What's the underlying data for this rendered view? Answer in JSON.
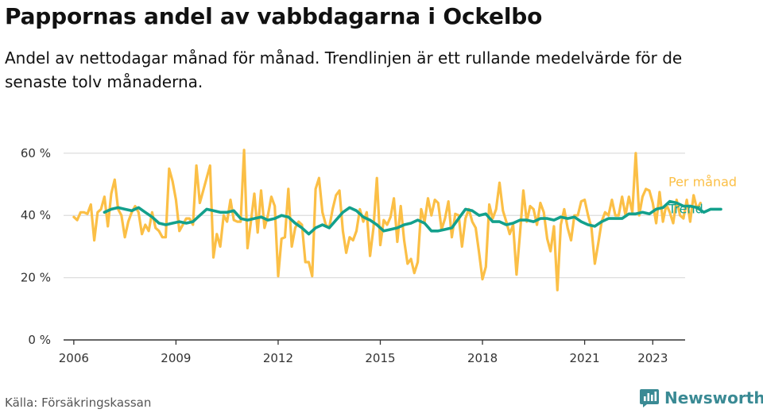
{
  "title": "Pappornas andel av vabbdagarna i Ockelbo",
  "subtitle": "Andel av nettodagar månad för månad. Trendlinjen är ett rullande medelvärde för de senaste tolv månaderna.",
  "source": "Källa: Försäkringskassan",
  "brand": {
    "name": "Newsworthy",
    "icon": "newsworthy-logo-icon",
    "color": "#3a8a94"
  },
  "colors": {
    "monthly": "#fbbf46",
    "trend": "#13a08c",
    "grid": "#dddddd",
    "axis": "#333333"
  },
  "chart_data": {
    "type": "line",
    "title": "Pappornas andel av vabbdagarna i Ockelbo",
    "ylim": [
      0,
      62
    ],
    "xlim": [
      2005.7,
      2023.95
    ],
    "y_ticks": [
      0,
      20,
      40,
      60
    ],
    "y_tick_labels": [
      "0 %",
      "20 %",
      "40 %",
      "60 %"
    ],
    "x_ticks": [
      2006,
      2009,
      2012,
      2015,
      2018,
      2021,
      2023
    ],
    "x_tick_labels": [
      "2006",
      "2009",
      "2012",
      "2015",
      "2018",
      "2021",
      "2023"
    ],
    "grid": "horizontal",
    "legend": "end-of-line labels, right",
    "series": [
      {
        "name": "Per månad",
        "color": "#fbbf46",
        "points": [
          [
            2006.0,
            39.5
          ],
          [
            2006.1,
            38.5
          ],
          [
            2006.2,
            41
          ],
          [
            2006.3,
            41
          ],
          [
            2006.4,
            40.5
          ],
          [
            2006.5,
            43.5
          ],
          [
            2006.6,
            32
          ],
          [
            2006.7,
            41
          ],
          [
            2006.8,
            42
          ],
          [
            2006.9,
            46
          ],
          [
            2007.0,
            36.5
          ],
          [
            2007.1,
            47
          ],
          [
            2007.2,
            51.5
          ],
          [
            2007.3,
            42
          ],
          [
            2007.4,
            40
          ],
          [
            2007.5,
            33
          ],
          [
            2007.6,
            38
          ],
          [
            2007.7,
            41
          ],
          [
            2007.8,
            43
          ],
          [
            2007.9,
            41
          ],
          [
            2008.0,
            34
          ],
          [
            2008.1,
            37
          ],
          [
            2008.2,
            35
          ],
          [
            2008.3,
            41
          ],
          [
            2008.4,
            36
          ],
          [
            2008.5,
            35
          ],
          [
            2008.6,
            33
          ],
          [
            2008.7,
            33
          ],
          [
            2008.8,
            55
          ],
          [
            2008.9,
            51
          ],
          [
            2009.0,
            45
          ],
          [
            2009.1,
            35
          ],
          [
            2009.2,
            37
          ],
          [
            2009.3,
            39
          ],
          [
            2009.4,
            39
          ],
          [
            2009.5,
            37
          ],
          [
            2009.6,
            56
          ],
          [
            2009.7,
            44
          ],
          [
            2009.8,
            48
          ],
          [
            2009.9,
            52
          ],
          [
            2010.0,
            56
          ],
          [
            2010.1,
            26.5
          ],
          [
            2010.2,
            34
          ],
          [
            2010.3,
            30
          ],
          [
            2010.4,
            40
          ],
          [
            2010.5,
            38
          ],
          [
            2010.6,
            45
          ],
          [
            2010.7,
            38.5
          ],
          [
            2010.8,
            38
          ],
          [
            2010.9,
            38
          ],
          [
            2011.0,
            61
          ],
          [
            2011.1,
            29.5
          ],
          [
            2011.2,
            38
          ],
          [
            2011.3,
            47
          ],
          [
            2011.4,
            34.5
          ],
          [
            2011.5,
            48
          ],
          [
            2011.6,
            36
          ],
          [
            2011.7,
            40
          ],
          [
            2011.8,
            46
          ],
          [
            2011.9,
            43
          ],
          [
            2012.0,
            20.5
          ],
          [
            2012.1,
            32.5
          ],
          [
            2012.2,
            33
          ],
          [
            2012.3,
            48.5
          ],
          [
            2012.4,
            30
          ],
          [
            2012.5,
            36
          ],
          [
            2012.6,
            38
          ],
          [
            2012.7,
            37
          ],
          [
            2012.8,
            25
          ],
          [
            2012.9,
            25
          ],
          [
            2013.0,
            20.5
          ],
          [
            2013.1,
            48.5
          ],
          [
            2013.2,
            52
          ],
          [
            2013.3,
            41
          ],
          [
            2013.4,
            37
          ],
          [
            2013.5,
            36
          ],
          [
            2013.6,
            42
          ],
          [
            2013.7,
            46.5
          ],
          [
            2013.8,
            48
          ],
          [
            2013.9,
            35
          ],
          [
            2014.0,
            28
          ],
          [
            2014.1,
            33
          ],
          [
            2014.2,
            32
          ],
          [
            2014.3,
            35
          ],
          [
            2014.4,
            42
          ],
          [
            2014.5,
            38
          ],
          [
            2014.6,
            41
          ],
          [
            2014.7,
            27
          ],
          [
            2014.8,
            36
          ],
          [
            2014.9,
            52
          ],
          [
            2015.0,
            30.5
          ],
          [
            2015.1,
            38.5
          ],
          [
            2015.2,
            37
          ],
          [
            2015.3,
            39.5
          ],
          [
            2015.4,
            45.5
          ],
          [
            2015.5,
            31.5
          ],
          [
            2015.6,
            43
          ],
          [
            2015.7,
            32
          ],
          [
            2015.8,
            24.5
          ],
          [
            2015.9,
            26
          ],
          [
            2016.0,
            21.5
          ],
          [
            2016.1,
            25
          ],
          [
            2016.2,
            42
          ],
          [
            2016.3,
            38
          ],
          [
            2016.4,
            45.5
          ],
          [
            2016.5,
            40
          ],
          [
            2016.6,
            45
          ],
          [
            2016.7,
            44
          ],
          [
            2016.8,
            35.5
          ],
          [
            2016.9,
            39
          ],
          [
            2017.0,
            44.5
          ],
          [
            2017.1,
            33
          ],
          [
            2017.2,
            40.5
          ],
          [
            2017.3,
            40
          ],
          [
            2017.4,
            30
          ],
          [
            2017.5,
            39
          ],
          [
            2017.6,
            42
          ],
          [
            2017.7,
            38
          ],
          [
            2017.8,
            36
          ],
          [
            2017.9,
            28
          ],
          [
            2018.0,
            19.5
          ],
          [
            2018.1,
            23.5
          ],
          [
            2018.2,
            43.5
          ],
          [
            2018.3,
            39
          ],
          [
            2018.4,
            42
          ],
          [
            2018.5,
            50.5
          ],
          [
            2018.6,
            41.5
          ],
          [
            2018.7,
            38
          ],
          [
            2018.8,
            34
          ],
          [
            2018.9,
            37
          ],
          [
            2019.0,
            21
          ],
          [
            2019.1,
            34
          ],
          [
            2019.2,
            48
          ],
          [
            2019.3,
            38
          ],
          [
            2019.4,
            43
          ],
          [
            2019.5,
            42
          ],
          [
            2019.6,
            37
          ],
          [
            2019.7,
            44
          ],
          [
            2019.8,
            41
          ],
          [
            2019.9,
            32.5
          ],
          [
            2020.0,
            28.5
          ],
          [
            2020.1,
            36.5
          ],
          [
            2020.2,
            16
          ],
          [
            2020.3,
            37
          ],
          [
            2020.4,
            42
          ],
          [
            2020.5,
            36
          ],
          [
            2020.6,
            32
          ],
          [
            2020.7,
            40
          ],
          [
            2020.8,
            40
          ],
          [
            2020.9,
            44.5
          ],
          [
            2021.0,
            45
          ],
          [
            2021.1,
            40
          ],
          [
            2021.2,
            36
          ],
          [
            2021.3,
            24.5
          ],
          [
            2021.4,
            31
          ],
          [
            2021.5,
            38
          ],
          [
            2021.6,
            41
          ],
          [
            2021.7,
            40
          ],
          [
            2021.8,
            45
          ],
          [
            2021.9,
            40
          ],
          [
            2022.0,
            40
          ],
          [
            2022.1,
            46
          ],
          [
            2022.2,
            40
          ],
          [
            2022.3,
            46
          ],
          [
            2022.4,
            41
          ],
          [
            2022.5,
            60
          ],
          [
            2022.6,
            40
          ],
          [
            2022.7,
            46
          ],
          [
            2022.8,
            48.5
          ],
          [
            2022.9,
            48
          ],
          [
            2023.0,
            44
          ],
          [
            2023.1,
            37.5
          ],
          [
            2023.2,
            47.5
          ],
          [
            2023.3,
            38
          ],
          [
            2023.4,
            43.5
          ],
          [
            2023.5,
            41
          ],
          [
            2023.6,
            37.5
          ],
          [
            2023.7,
            45
          ],
          [
            2023.8,
            40
          ],
          [
            2023.9,
            39
          ],
          [
            2024.0,
            45
          ],
          [
            2024.1,
            38
          ],
          [
            2024.2,
            46.5
          ],
          [
            2024.3,
            42
          ],
          [
            2024.4,
            44
          ]
        ]
      },
      {
        "name": "Trend",
        "color": "#13a08c",
        "points": [
          [
            2006.9,
            41
          ],
          [
            2007.1,
            42
          ],
          [
            2007.3,
            42.5
          ],
          [
            2007.5,
            42
          ],
          [
            2007.7,
            41.5
          ],
          [
            2007.9,
            42.5
          ],
          [
            2008.1,
            41
          ],
          [
            2008.3,
            39.5
          ],
          [
            2008.5,
            37.5
          ],
          [
            2008.7,
            37
          ],
          [
            2008.9,
            37.5
          ],
          [
            2009.1,
            38
          ],
          [
            2009.3,
            37.5
          ],
          [
            2009.5,
            38
          ],
          [
            2009.7,
            40
          ],
          [
            2009.9,
            42
          ],
          [
            2010.1,
            41.5
          ],
          [
            2010.3,
            41
          ],
          [
            2010.5,
            41
          ],
          [
            2010.7,
            41.5
          ],
          [
            2010.9,
            39
          ],
          [
            2011.1,
            38.5
          ],
          [
            2011.3,
            39
          ],
          [
            2011.5,
            39.5
          ],
          [
            2011.7,
            38.5
          ],
          [
            2011.9,
            39
          ],
          [
            2012.1,
            40
          ],
          [
            2012.3,
            39.5
          ],
          [
            2012.5,
            37.5
          ],
          [
            2012.7,
            36
          ],
          [
            2012.9,
            34
          ],
          [
            2013.1,
            36
          ],
          [
            2013.3,
            37
          ],
          [
            2013.5,
            36
          ],
          [
            2013.7,
            38.5
          ],
          [
            2013.9,
            41
          ],
          [
            2014.1,
            42.5
          ],
          [
            2014.3,
            41.5
          ],
          [
            2014.5,
            39.5
          ],
          [
            2014.7,
            38.5
          ],
          [
            2014.9,
            37
          ],
          [
            2015.1,
            35
          ],
          [
            2015.3,
            35.5
          ],
          [
            2015.5,
            36
          ],
          [
            2015.7,
            37
          ],
          [
            2015.9,
            37.5
          ],
          [
            2016.1,
            38.5
          ],
          [
            2016.3,
            37.5
          ],
          [
            2016.5,
            35
          ],
          [
            2016.7,
            35
          ],
          [
            2016.9,
            35.5
          ],
          [
            2017.1,
            36
          ],
          [
            2017.3,
            39
          ],
          [
            2017.5,
            42
          ],
          [
            2017.7,
            41.5
          ],
          [
            2017.9,
            40
          ],
          [
            2018.1,
            40.5
          ],
          [
            2018.3,
            38
          ],
          [
            2018.5,
            38
          ],
          [
            2018.7,
            37
          ],
          [
            2018.9,
            37.5
          ],
          [
            2019.1,
            38.5
          ],
          [
            2019.3,
            38.5
          ],
          [
            2019.5,
            38
          ],
          [
            2019.7,
            39
          ],
          [
            2019.9,
            39
          ],
          [
            2020.1,
            38.5
          ],
          [
            2020.3,
            39.5
          ],
          [
            2020.5,
            39
          ],
          [
            2020.7,
            39.5
          ],
          [
            2020.9,
            38
          ],
          [
            2021.1,
            37
          ],
          [
            2021.3,
            36.5
          ],
          [
            2021.5,
            38
          ],
          [
            2021.7,
            39
          ],
          [
            2021.9,
            39
          ],
          [
            2022.1,
            39
          ],
          [
            2022.3,
            40.5
          ],
          [
            2022.5,
            40.5
          ],
          [
            2022.7,
            41
          ],
          [
            2022.9,
            40.5
          ],
          [
            2023.1,
            42
          ],
          [
            2023.3,
            42.5
          ],
          [
            2023.5,
            44.5
          ],
          [
            2023.7,
            44
          ],
          [
            2023.9,
            43
          ],
          [
            2024.1,
            43
          ],
          [
            2024.3,
            42.5
          ],
          [
            2024.5,
            41
          ],
          [
            2024.7,
            42
          ],
          [
            2024.9,
            42
          ],
          [
            2025.0,
            42
          ]
        ]
      }
    ]
  }
}
